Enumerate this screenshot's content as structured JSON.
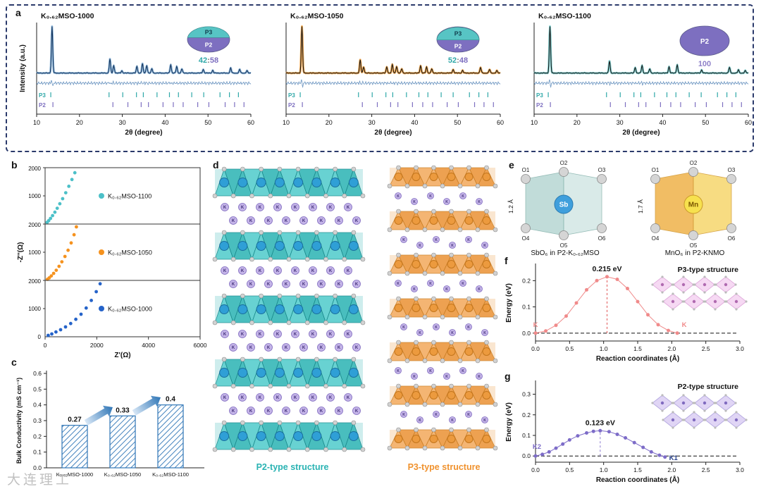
{
  "watermark": "大连理工",
  "colors": {
    "dashed_border": "#2b3a6b",
    "p3_teal": "#57c4c4",
    "p2_purple": "#7d6fc0",
    "teal_text": "#2fa8a8",
    "purple_text": "#8f82c9",
    "diff_line": "#6a94c0",
    "bar_blue": "#2e75b6"
  },
  "panel_a": {
    "label": "a",
    "ylabel": "Intensity (a.u.)",
    "xlabel": "2θ (degree)",
    "phase1": "P3",
    "phase2": "P2",
    "xticks": [
      10,
      20,
      30,
      40,
      50,
      60
    ]
  },
  "panel_b": {
    "label": "b",
    "xlabel": "Z'(Ω)",
    "ylabel": "-Z''(Ω)"
  },
  "panel_c": {
    "label": "c"
  },
  "panel_d": {
    "label": "d",
    "k_label": "K",
    "caption_left": "P2-type structure",
    "caption_right": "P3-type structure"
  },
  "panel_e": {
    "label": "e",
    "left": {
      "center": "Sb",
      "bond": "1.2 Å",
      "caption": "SbO₆ in P2-K₀.₆₂MSO",
      "o_labels": [
        "O1",
        "O2",
        "O3",
        "O4",
        "O5",
        "O6"
      ]
    },
    "right": {
      "center": "Mn",
      "bond": "1.7 Å",
      "caption": "MnO₆ in P2-KNMO",
      "o_labels": [
        "O1",
        "O2",
        "O3",
        "O4",
        "O5",
        "O6"
      ]
    }
  },
  "panel_f": {
    "label": "f"
  },
  "panel_g": {
    "label": "g"
  },
  "chart_data": [
    {
      "id": "xrd-1000",
      "type": "line",
      "title": "K₀.₆₂MSO-1000",
      "xlabel": "2θ (degree)",
      "ylabel": "Intensity (a.u.)",
      "xlim": [
        10,
        60
      ],
      "trace_color": "#17365e",
      "marker_color": "#8ab6dc",
      "peaks": [
        [
          13.6,
          1.0
        ],
        [
          27.1,
          0.3
        ],
        [
          28.0,
          0.16
        ],
        [
          29.9,
          0.05
        ],
        [
          33.4,
          0.14
        ],
        [
          34.7,
          0.2
        ],
        [
          35.7,
          0.16
        ],
        [
          36.9,
          0.09
        ],
        [
          41.3,
          0.18
        ],
        [
          42.7,
          0.14
        ],
        [
          43.9,
          0.09
        ],
        [
          48.9,
          0.08
        ],
        [
          51.1,
          0.06
        ],
        [
          55.3,
          0.11
        ],
        [
          57.4,
          0.08
        ],
        [
          59.1,
          0.05
        ]
      ],
      "p3_ticks": [
        13.3,
        26.9,
        30.1,
        33.3,
        34.9,
        38.1,
        41.0,
        43.1,
        46.2,
        49.0,
        52.8,
        55.0,
        57.1
      ],
      "p2_ticks": [
        13.8,
        27.8,
        31.3,
        34.4,
        36.1,
        39.5,
        41.9,
        44.2,
        47.6,
        50.2,
        54.0,
        56.2,
        58.4
      ],
      "pie": {
        "p3": 42,
        "p2": 58,
        "ratio_left": "42",
        "sep": ":",
        "ratio_right": "58"
      }
    },
    {
      "id": "xrd-1050",
      "type": "line",
      "title": "K₀.₆₂MSO-1050",
      "xlabel": "2θ (degree)",
      "ylabel": "Intensity (a.u.)",
      "xlim": [
        10,
        60
      ],
      "trace_color": "#1a1a1a",
      "marker_color": "#f6a13c",
      "peaks": [
        [
          13.7,
          1.0
        ],
        [
          27.3,
          0.28
        ],
        [
          28.1,
          0.13
        ],
        [
          33.5,
          0.13
        ],
        [
          34.8,
          0.18
        ],
        [
          35.8,
          0.14
        ],
        [
          37.0,
          0.09
        ],
        [
          41.4,
          0.16
        ],
        [
          42.8,
          0.13
        ],
        [
          44.0,
          0.09
        ],
        [
          49.0,
          0.08
        ],
        [
          51.2,
          0.06
        ],
        [
          55.4,
          0.12
        ],
        [
          57.5,
          0.08
        ],
        [
          59.2,
          0.05
        ]
      ],
      "p3_ticks": [
        13.3,
        26.9,
        30.1,
        33.3,
        34.9,
        38.1,
        41.0,
        43.1,
        46.2,
        49.0,
        52.8,
        55.0,
        57.1
      ],
      "p2_ticks": [
        13.8,
        27.8,
        31.3,
        34.4,
        36.1,
        39.5,
        41.9,
        44.2,
        47.6,
        50.2,
        54.0,
        56.2,
        58.4
      ],
      "pie": {
        "p3": 52,
        "p2": 48,
        "ratio_left": "52",
        "sep": ":",
        "ratio_right": "48"
      }
    },
    {
      "id": "xrd-1100",
      "type": "line",
      "title": "K₀.₆₂MSO-1100",
      "xlabel": "2θ (degree)",
      "ylabel": "Intensity (a.u.)",
      "xlim": [
        10,
        60
      ],
      "trace_color": "#1a1a1a",
      "marker_color": "#74cfcf",
      "peaks": [
        [
          13.7,
          1.0
        ],
        [
          27.6,
          0.26
        ],
        [
          33.6,
          0.12
        ],
        [
          35.2,
          0.16
        ],
        [
          37.0,
          0.09
        ],
        [
          41.5,
          0.14
        ],
        [
          43.4,
          0.18
        ],
        [
          49.1,
          0.07
        ],
        [
          55.6,
          0.12
        ],
        [
          57.7,
          0.07
        ],
        [
          59.3,
          0.05
        ]
      ],
      "p3_ticks": [
        13.3,
        26.9,
        30.1,
        33.3,
        34.9,
        38.1,
        41.0,
        43.1,
        46.2,
        49.0,
        52.8,
        55.0,
        57.1
      ],
      "p2_ticks": [
        13.8,
        27.8,
        31.3,
        34.4,
        36.1,
        39.5,
        41.9,
        44.2,
        47.6,
        50.2,
        54.0,
        56.2,
        58.4
      ],
      "pie": {
        "p2": 100,
        "ratio_right": "100"
      }
    },
    {
      "id": "eis",
      "type": "scatter",
      "xlabel": "Z'(Ω)",
      "ylabel": "-Z''(Ω)",
      "xlim": [
        0,
        6000
      ],
      "ylim": [
        0,
        2000
      ],
      "xticks": [
        0,
        2000,
        4000,
        6000
      ],
      "yticks": [
        0,
        1000,
        2000
      ],
      "series": [
        {
          "name": "K₀.₆₂MSO-1100",
          "color": "#4cc0c8",
          "points": [
            [
              80,
              60
            ],
            [
              140,
              120
            ],
            [
              210,
              200
            ],
            [
              290,
              300
            ],
            [
              380,
              420
            ],
            [
              470,
              560
            ],
            [
              570,
              720
            ],
            [
              680,
              900
            ],
            [
              800,
              1110
            ],
            [
              920,
              1340
            ],
            [
              1040,
              1580
            ],
            [
              1150,
              1820
            ],
            [
              1230,
              1980
            ]
          ]
        },
        {
          "name": "K₀.₆₂MSO-1050",
          "color": "#f5921e",
          "points": [
            [
              90,
              40
            ],
            [
              160,
              90
            ],
            [
              240,
              160
            ],
            [
              330,
              250
            ],
            [
              430,
              360
            ],
            [
              540,
              500
            ],
            [
              650,
              660
            ],
            [
              770,
              850
            ],
            [
              890,
              1070
            ],
            [
              1010,
              1330
            ],
            [
              1120,
              1620
            ],
            [
              1210,
              1900
            ]
          ]
        },
        {
          "name": "K₀.₆₂MSO-1000",
          "color": "#2563c9",
          "points": [
            [
              120,
              50
            ],
            [
              260,
              100
            ],
            [
              420,
              170
            ],
            [
              600,
              250
            ],
            [
              790,
              350
            ],
            [
              990,
              470
            ],
            [
              1190,
              620
            ],
            [
              1390,
              800
            ],
            [
              1590,
              1020
            ],
            [
              1790,
              1290
            ],
            [
              1980,
              1600
            ],
            [
              2130,
              1880
            ]
          ]
        }
      ]
    },
    {
      "id": "bulk-conductivity",
      "type": "bar",
      "ylabel": "Bulk Conductivity (mS cm⁻¹)",
      "ylim": [
        0,
        0.6
      ],
      "yticks": [
        0,
        0.1,
        0.2,
        0.3,
        0.4,
        0.5,
        0.6
      ],
      "categories": [
        "K₀.₆₂MSO-1000",
        "K₀.₆₂MSO-1050",
        "K₀.₆₂MSO-1100"
      ],
      "values": [
        0.27,
        0.33,
        0.4
      ],
      "labels": [
        "0.27",
        "0.33",
        "0.4"
      ]
    },
    {
      "id": "neb-p3",
      "type": "line",
      "structure": "P3-type structure",
      "annotation": "0.215 eV",
      "xlabel": "Reaction coordinates (Å)",
      "ylabel": "Energy (eV)",
      "xlim": [
        0,
        3
      ],
      "xticks": [
        0,
        0.5,
        1,
        1.5,
        2,
        2.5,
        3
      ],
      "yticks": [
        0,
        0.1,
        0.2
      ],
      "color": "#f08a8a",
      "vline": "#e05555",
      "peak": [
        1.05,
        0.215
      ],
      "start_label": "K",
      "end_label": "K",
      "points": [
        [
          0,
          0
        ],
        [
          0.15,
          0.008
        ],
        [
          0.3,
          0.03
        ],
        [
          0.45,
          0.065
        ],
        [
          0.6,
          0.115
        ],
        [
          0.75,
          0.165
        ],
        [
          0.9,
          0.2
        ],
        [
          1.05,
          0.215
        ],
        [
          1.2,
          0.205
        ],
        [
          1.35,
          0.17
        ],
        [
          1.5,
          0.12
        ],
        [
          1.65,
          0.07
        ],
        [
          1.8,
          0.032
        ],
        [
          1.95,
          0.01
        ],
        [
          2.08,
          0
        ]
      ]
    },
    {
      "id": "neb-p2",
      "type": "line",
      "structure": "P2-type structure",
      "annotation": "0.123 eV",
      "xlabel": "Reaction coordinates (Å)",
      "ylabel": "Energy (eV)",
      "xlim": [
        0,
        3
      ],
      "xticks": [
        0,
        0.5,
        1,
        1.5,
        2,
        2.5,
        3
      ],
      "yticks": [
        0,
        0.1,
        0.2,
        0.3
      ],
      "color": "#7d6cc8",
      "vline": "#8a7ad0",
      "peak": [
        0.95,
        0.123
      ],
      "start_label": "K2",
      "end_label": "K1",
      "points": [
        [
          0,
          0
        ],
        [
          0.1,
          0.008
        ],
        [
          0.2,
          0.02
        ],
        [
          0.3,
          0.038
        ],
        [
          0.4,
          0.058
        ],
        [
          0.5,
          0.078
        ],
        [
          0.62,
          0.098
        ],
        [
          0.75,
          0.112
        ],
        [
          0.85,
          0.12
        ],
        [
          0.95,
          0.123
        ],
        [
          1.08,
          0.118
        ],
        [
          1.2,
          0.105
        ],
        [
          1.32,
          0.088
        ],
        [
          1.45,
          0.065
        ],
        [
          1.58,
          0.042
        ],
        [
          1.7,
          0.02
        ],
        [
          1.82,
          0.004
        ],
        [
          1.9,
          -0.005
        ]
      ]
    }
  ]
}
